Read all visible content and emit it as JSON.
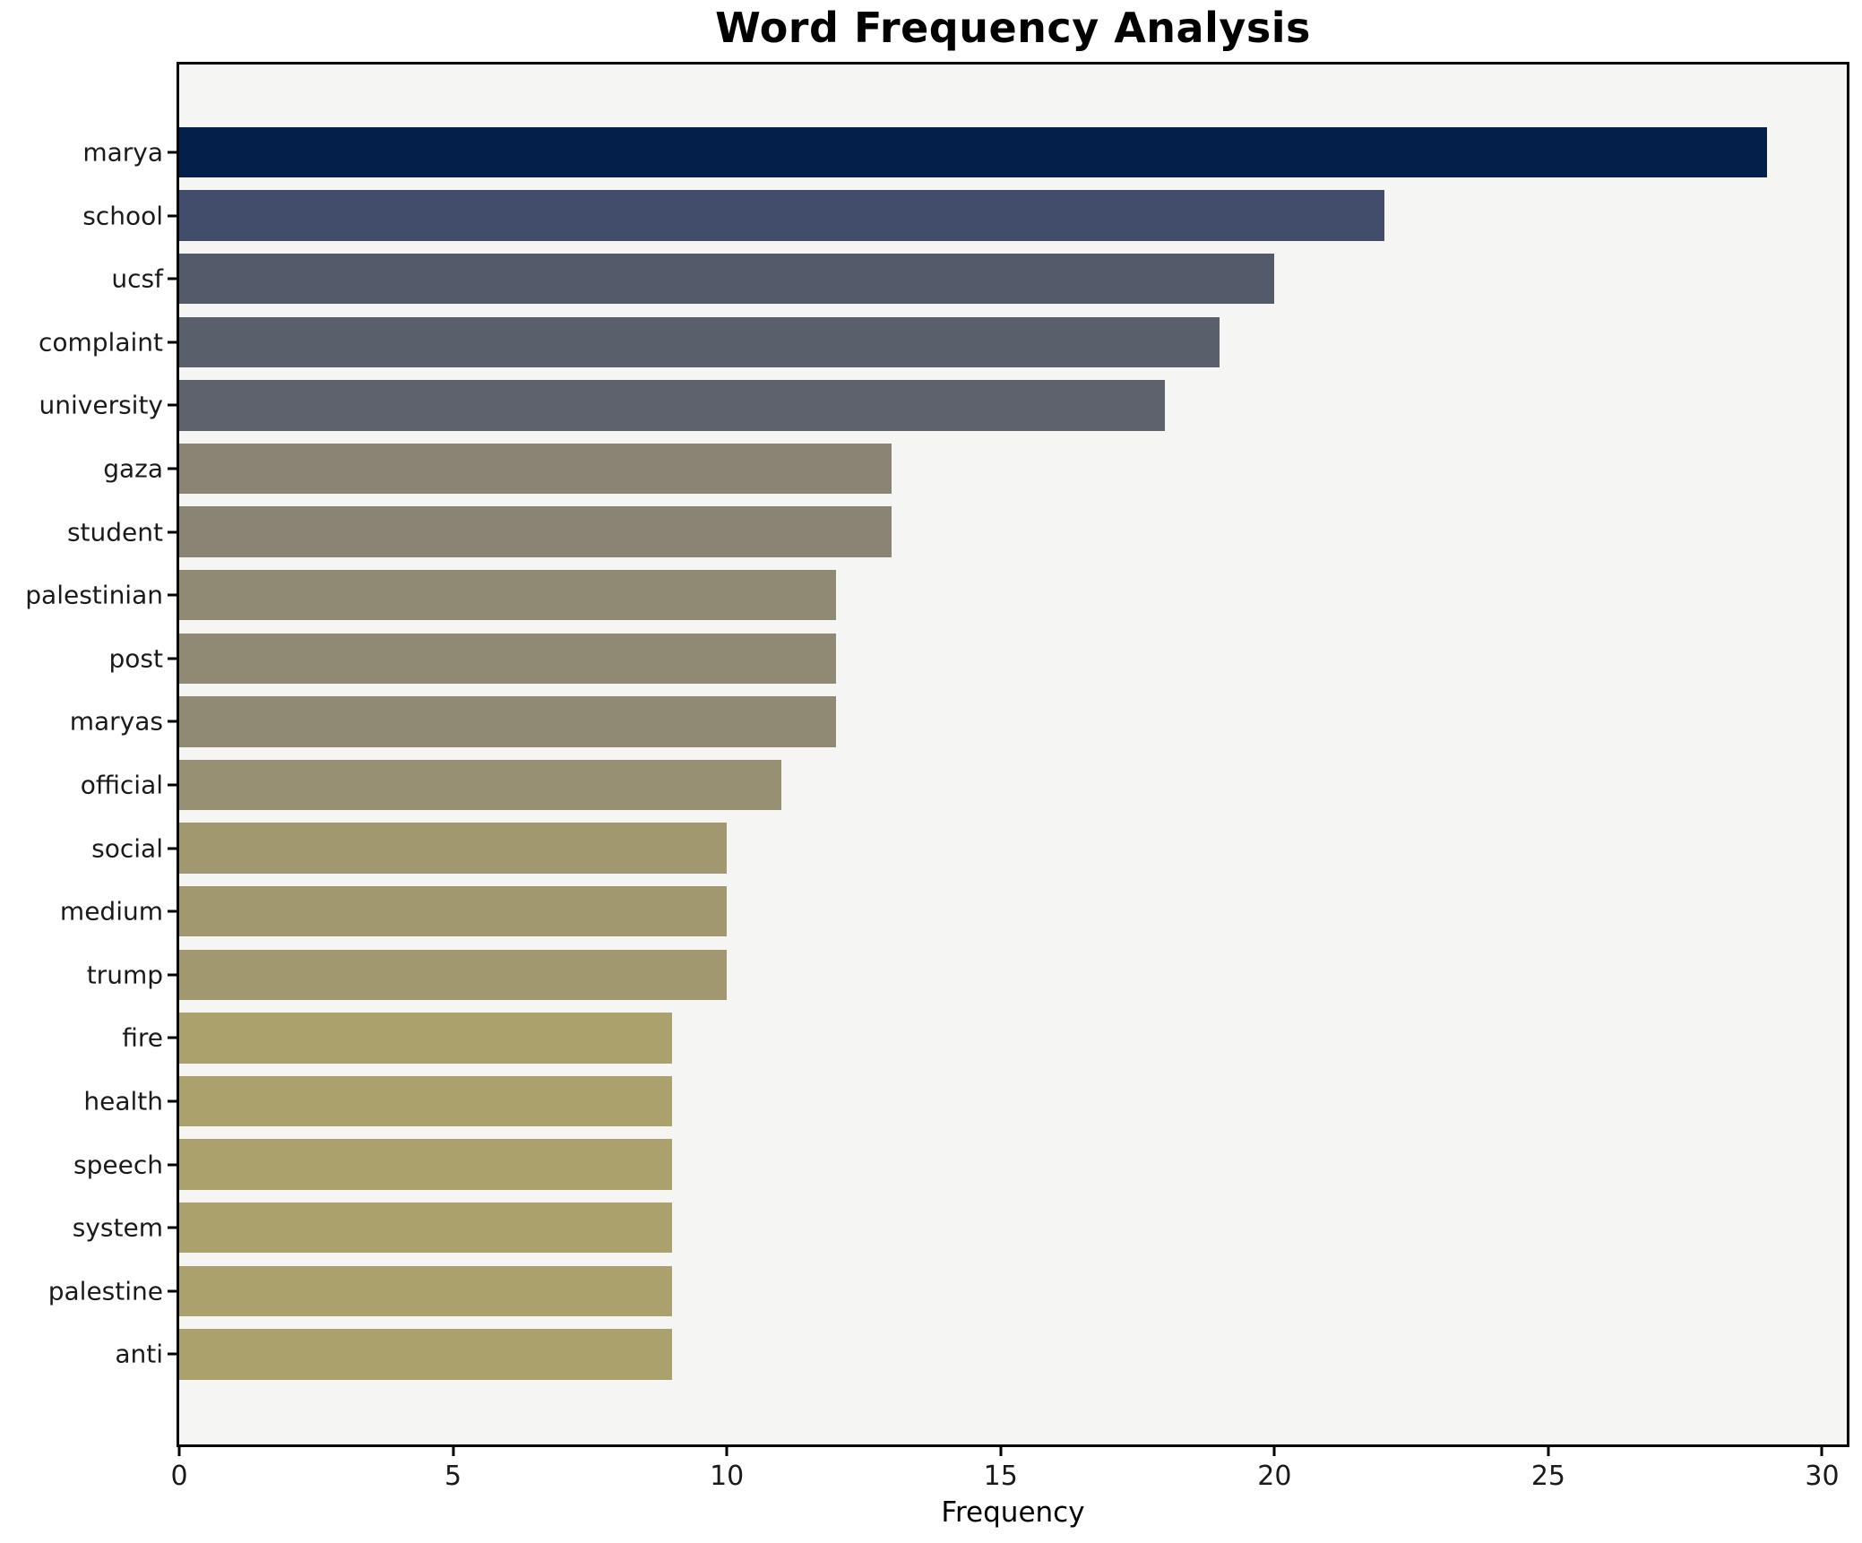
{
  "figure": {
    "background": "#ffffff",
    "plot_background": "#f5f5f3",
    "spine_color": "#000000",
    "text_color": "#1a1a1a"
  },
  "chart_data": {
    "type": "bar",
    "orientation": "horizontal",
    "title": "Word Frequency Analysis",
    "xlabel": "Frequency",
    "ylabel": "",
    "categories": [
      "marya",
      "school",
      "ucsf",
      "complaint",
      "university",
      "gaza",
      "student",
      "palestinian",
      "post",
      "maryas",
      "official",
      "social",
      "medium",
      "trump",
      "fire",
      "health",
      "speech",
      "system",
      "palestine",
      "anti"
    ],
    "values": [
      29,
      22,
      20,
      19,
      18,
      13,
      13,
      12,
      12,
      12,
      11,
      10,
      10,
      10,
      9,
      9,
      9,
      9,
      9,
      9
    ],
    "bar_colors": [
      "#04204a",
      "#424d6b",
      "#535b6b",
      "#595f6b",
      "#5e626c",
      "#8a8474",
      "#8a8474",
      "#908a75",
      "#908a75",
      "#908a75",
      "#989072",
      "#a19870",
      "#a19870",
      "#a19870",
      "#aaa16c",
      "#aaa16c",
      "#aaa16c",
      "#aaa16c",
      "#aaa16c",
      "#aaa16c"
    ],
    "xticks": [
      0,
      5,
      10,
      15,
      20,
      25,
      30
    ],
    "xlim": [
      0,
      30.45
    ],
    "grid": false,
    "legend": null,
    "colormap": "cividis",
    "bar_height_fraction": 0.8
  }
}
